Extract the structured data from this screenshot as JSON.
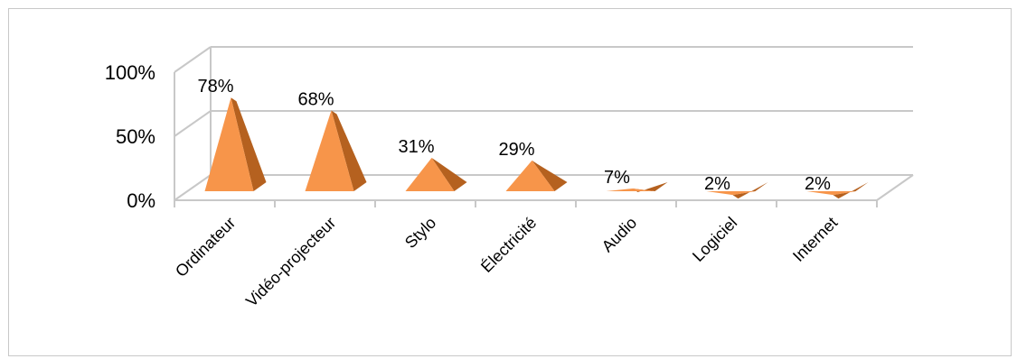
{
  "chart_data": {
    "type": "bar",
    "style": "3d-pyramid",
    "categories": [
      "Ordinateur",
      "Vidéo-projecteur",
      "Stylo",
      "Électricité",
      "Audio",
      "Logiciel",
      "Internet"
    ],
    "values": [
      78,
      68,
      31,
      29,
      7,
      2,
      2
    ],
    "data_labels": [
      "78%",
      "68%",
      "31%",
      "29%",
      "7%",
      "2%",
      "2%"
    ],
    "y_ticks": [
      "0%",
      "50%",
      "100%"
    ],
    "ylim": [
      0,
      100
    ],
    "grid": true,
    "legend": "none",
    "colors": {
      "front": "#f7954a",
      "side": "#b5611f",
      "wall": "#c8c8c8"
    }
  }
}
